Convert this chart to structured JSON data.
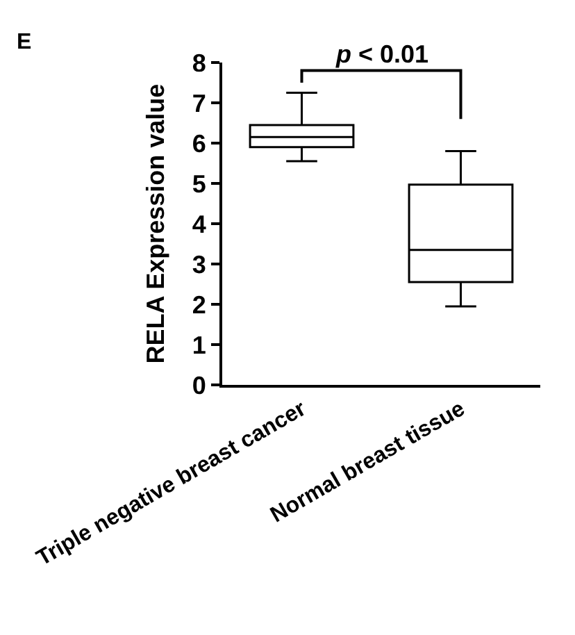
{
  "chart_data": {
    "type": "box",
    "title": "E",
    "ylabel": "RELA Expression value",
    "categories": [
      "Triple negative breast cancer",
      "Normal breast tissue"
    ],
    "boxes": [
      {
        "low": 5.55,
        "q1": 5.9,
        "median": 6.15,
        "q3": 6.45,
        "high": 7.25
      },
      {
        "low": 1.95,
        "q1": 2.55,
        "median": 3.35,
        "q3": 4.97,
        "high": 5.8
      }
    ],
    "color": "#000000",
    "ylim": [
      0,
      8
    ],
    "yticks": [
      0,
      1,
      2,
      3,
      4,
      5,
      6,
      7,
      8
    ],
    "annotations": [
      "p < 0.01"
    ]
  }
}
